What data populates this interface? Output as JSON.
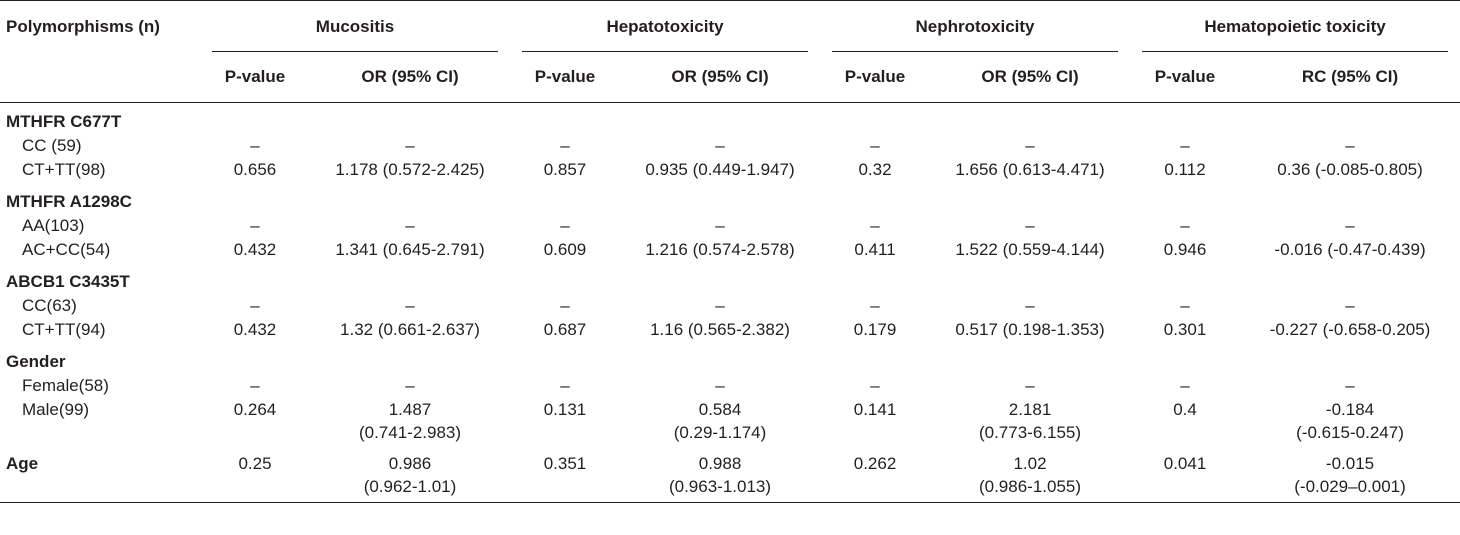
{
  "header": {
    "label": "Polymorphisms (n)",
    "groups": [
      "Mucositis",
      "Hepatotoxicity",
      "Nephrotoxicity",
      "Hematopoietic toxicity"
    ],
    "subcols": [
      "P-value",
      "OR (95% CI)",
      "P-value",
      "OR (95% CI)",
      "P-value",
      "OR (95% CI)",
      "P-value",
      "RC (95% CI)"
    ]
  },
  "sections": [
    {
      "title": "MTHFR C677T",
      "rows": [
        {
          "label": "CC (59)",
          "cells": [
            "–",
            "–",
            "–",
            "–",
            "–",
            "–",
            "–",
            "–"
          ]
        },
        {
          "label": "CT+TT(98)",
          "cells": [
            "0.656",
            "1.178 (0.572-2.425)",
            "0.857",
            "0.935 (0.449-1.947)",
            "0.32",
            "1.656 (0.613-4.471)",
            "0.112",
            "0.36 (-0.085-0.805)"
          ]
        }
      ]
    },
    {
      "title": "MTHFR A1298C",
      "rows": [
        {
          "label": "AA(103)",
          "cells": [
            "–",
            "–",
            "–",
            "–",
            "–",
            "–",
            "–",
            "–"
          ]
        },
        {
          "label": "AC+CC(54)",
          "cells": [
            "0.432",
            "1.341 (0.645-2.791)",
            "0.609",
            "1.216 (0.574-2.578)",
            "0.411",
            "1.522 (0.559-4.144)",
            "0.946",
            "-0.016 (-0.47-0.439)"
          ]
        }
      ]
    },
    {
      "title": "ABCB1 C3435T",
      "rows": [
        {
          "label": "CC(63)",
          "cells": [
            "–",
            "–",
            "–",
            "–",
            "–",
            "–",
            "–",
            "–"
          ]
        },
        {
          "label": "CT+TT(94)",
          "cells": [
            "0.432",
            "1.32 (0.661-2.637)",
            "0.687",
            "1.16 (0.565-2.382)",
            "0.179",
            "0.517 (0.198-1.353)",
            "0.301",
            "-0.227 (-0.658-0.205)"
          ]
        }
      ]
    },
    {
      "title": "Gender",
      "rows": [
        {
          "label": "Female(58)",
          "cells": [
            "–",
            "–",
            "–",
            "–",
            "–",
            "–",
            "–",
            "–"
          ]
        },
        {
          "label": "Male(99)",
          "cells": [
            "0.264",
            [
              "1.487",
              "(0.741-2.983)"
            ],
            "0.131",
            [
              "0.584",
              "(0.29-1.174)"
            ],
            "0.141",
            [
              "2.181",
              "(0.773-6.155)"
            ],
            "0.4",
            [
              "-0.184",
              "(-0.615-0.247)"
            ]
          ]
        }
      ]
    }
  ],
  "age": {
    "label": "Age",
    "cells": [
      "0.25",
      [
        "0.986",
        "(0.962-1.01)"
      ],
      "0.351",
      [
        "0.988",
        "(0.963-1.013)"
      ],
      "0.262",
      [
        "1.02",
        "(0.986-1.055)"
      ],
      "0.041",
      [
        "-0.015",
        "(-0.029–0.001)"
      ]
    ]
  }
}
